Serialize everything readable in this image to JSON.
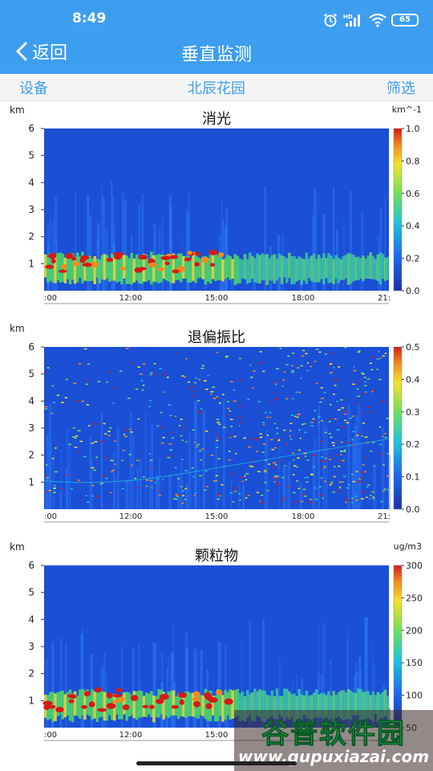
{
  "status_bar": {
    "time": "8:49",
    "battery": "65",
    "net_label": "HD"
  },
  "nav": {
    "back_label": "返回",
    "title": "垂直监测"
  },
  "toolbar": {
    "left": "设备",
    "center": "北辰花园",
    "right": "筛选"
  },
  "colors": {
    "header": "#3d9ef0",
    "plot_bg": "#1a4fd6",
    "accent": "#3d9ef0"
  },
  "charts": [
    {
      "title": "消光",
      "y_unit": "km",
      "y_ticks": [
        "6",
        "5",
        "4",
        "3",
        "2",
        "1"
      ],
      "x_ticks": [
        ":00",
        "12:00",
        "15:00",
        "18:00",
        "21:"
      ],
      "colorbar_unit": "km^-1",
      "colorbar_ticks": [
        "1.0",
        "0.8",
        "0.6",
        "0.4",
        "0.2",
        "0.0"
      ]
    },
    {
      "title": "退偏振比",
      "y_unit": "km",
      "y_ticks": [
        "6",
        "5",
        "4",
        "3",
        "2",
        "1"
      ],
      "x_ticks": [
        ":00",
        "12:00",
        "15:00",
        "18:00",
        "21:"
      ],
      "colorbar_unit": "",
      "colorbar_ticks": [
        "0.5",
        "0.4",
        "0.3",
        "0.2",
        "0.1",
        "0.0"
      ]
    },
    {
      "title": "颗粒物",
      "y_unit": "km",
      "y_ticks": [
        "6",
        "5",
        "4",
        "3",
        "2",
        "1"
      ],
      "x_ticks": [
        ":00",
        "12:00",
        "15:00"
      ],
      "colorbar_unit": "ug/m3",
      "colorbar_ticks": [
        "300",
        "250",
        "200",
        "150",
        "100",
        "50"
      ]
    }
  ],
  "watermark": {
    "logo": "谷普软件园",
    "url": "www.gupuxiazai.com"
  }
}
